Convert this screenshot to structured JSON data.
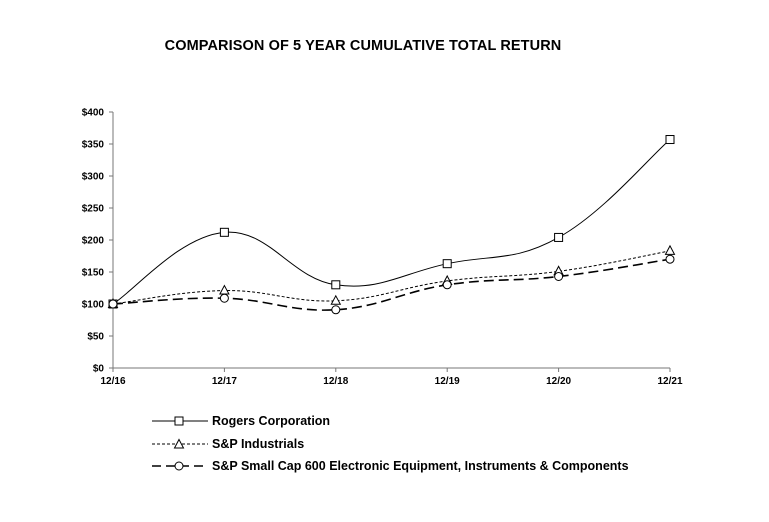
{
  "chart_data": {
    "type": "line",
    "title": "COMPARISON OF 5 YEAR CUMULATIVE TOTAL RETURN",
    "xlabel": "",
    "ylabel": "",
    "categories": [
      "12/16",
      "12/17",
      "12/18",
      "12/19",
      "12/20",
      "12/21"
    ],
    "ylim": [
      0,
      400
    ],
    "yticks": [
      0,
      50,
      100,
      150,
      200,
      250,
      300,
      350,
      400
    ],
    "ytick_labels": [
      "$0",
      "$50",
      "$100",
      "$150",
      "$200",
      "$250",
      "$300",
      "$350",
      "$400"
    ],
    "grid": false,
    "legend_position": "bottom",
    "series": [
      {
        "name": "Rogers Corporation",
        "marker": "square",
        "line_style": "solid",
        "values": [
          100,
          212,
          130,
          163,
          204,
          357
        ]
      },
      {
        "name": "S&P Industrials",
        "marker": "triangle",
        "line_style": "dotted",
        "values": [
          100,
          121,
          105,
          136,
          151,
          183
        ]
      },
      {
        "name": "S&P Small Cap 600 Electronic Equipment, Instruments & Components",
        "marker": "circle",
        "line_style": "dashed",
        "values": [
          100,
          109,
          91,
          130,
          143,
          170
        ]
      }
    ]
  }
}
